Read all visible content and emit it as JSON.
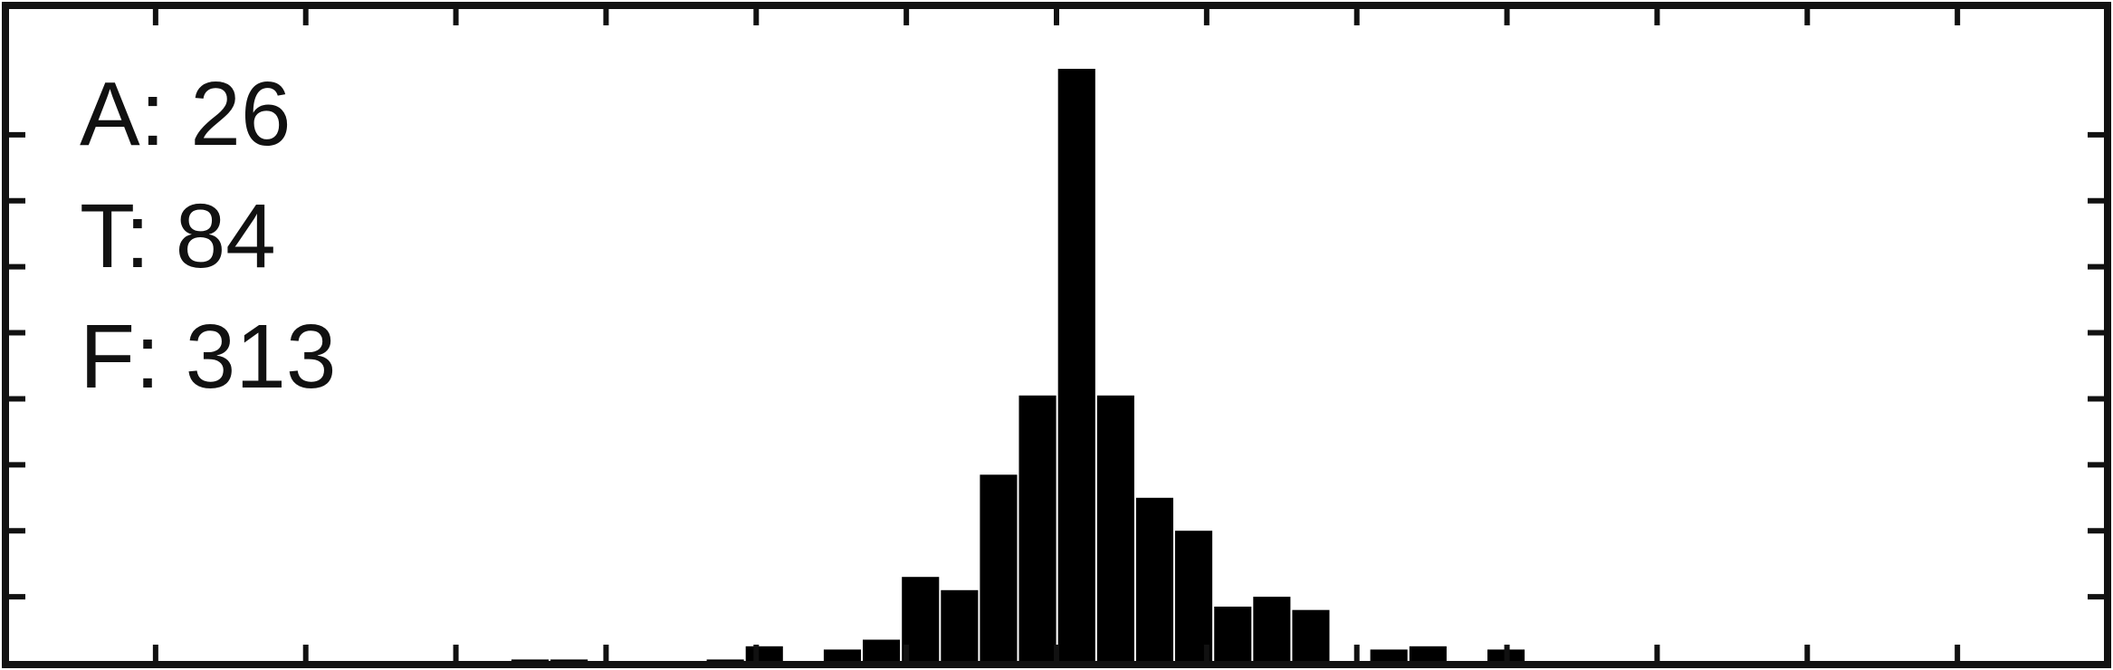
{
  "chart_data": {
    "type": "bar",
    "title": "",
    "xlabel": "",
    "ylabel": "",
    "xlim": [
      -3.5,
      3.5
    ],
    "ylim": [
      0,
      1.8
    ],
    "bin_width": 0.13,
    "x_ticks": [
      -3.0,
      -2.5,
      -2.0,
      -1.5,
      -1.0,
      -0.5,
      0.0,
      0.5,
      1.0,
      1.5,
      2.0,
      2.5,
      3.0
    ],
    "y_ticks": [
      0.2,
      0.4,
      0.6,
      0.8,
      1.0,
      1.2,
      1.4,
      1.6
    ],
    "x": [
      -1.75,
      -1.62,
      -1.1,
      -0.97,
      -0.71,
      -0.58,
      -0.45,
      -0.32,
      -0.19,
      -0.06,
      0.07,
      0.2,
      0.33,
      0.46,
      0.59,
      0.72,
      0.85,
      1.11,
      1.24,
      1.5
    ],
    "values": [
      0.01,
      0.01,
      0.01,
      0.05,
      0.04,
      0.07,
      0.26,
      0.22,
      0.57,
      0.81,
      1.8,
      0.81,
      0.5,
      0.4,
      0.17,
      0.2,
      0.16,
      0.04,
      0.05,
      0.04
    ],
    "bar_color": "#000000",
    "grid": false,
    "legend": "none",
    "annotations": [
      "A: 26",
      "T: 84",
      "F: 313"
    ]
  }
}
